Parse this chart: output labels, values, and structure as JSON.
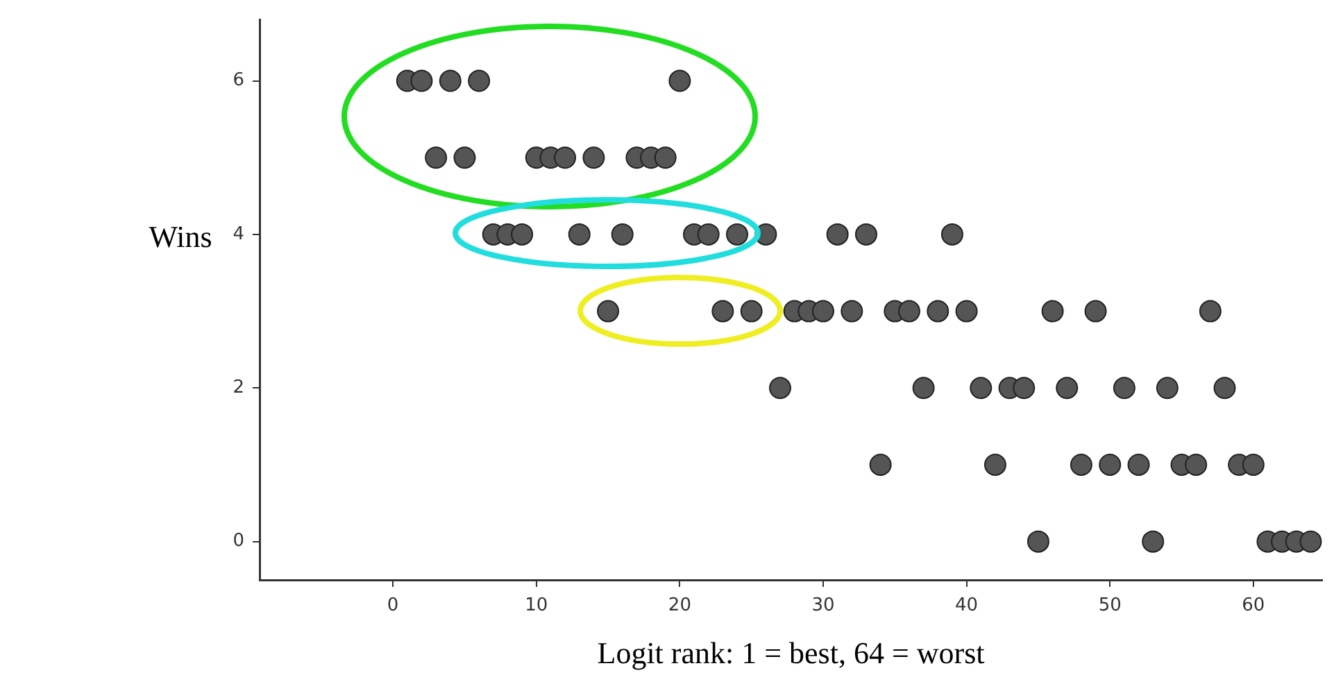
{
  "chart_data": {
    "type": "scatter",
    "xlabel": "Logit rank: 1 = best, 64 = worst",
    "ylabel": "Wins",
    "xlim": [
      -9.3,
      64.8
    ],
    "ylim": [
      -0.5,
      6.8
    ],
    "xticks": [
      0,
      10,
      20,
      30,
      40,
      50,
      60
    ],
    "yticks": [
      0,
      2,
      4,
      6
    ],
    "grid": false,
    "legend": false,
    "marker": "circle",
    "series": [
      {
        "color": "#555555",
        "x": [
          1,
          2,
          3,
          4,
          5,
          6,
          7,
          8,
          9,
          10,
          11,
          12,
          13,
          14,
          15,
          16,
          17,
          18,
          19,
          20,
          21,
          22,
          23,
          24,
          25,
          26,
          27,
          28,
          29,
          30,
          31,
          32,
          33,
          34,
          35,
          36,
          37,
          38,
          39,
          40,
          41,
          42,
          43,
          44,
          45,
          46,
          47,
          48,
          49,
          50,
          51,
          52,
          53,
          54,
          55,
          56,
          57,
          58,
          59,
          60,
          61,
          62,
          63,
          64
        ],
        "values": [
          6,
          6,
          5,
          6,
          5,
          6,
          4,
          4,
          4,
          5,
          5,
          5,
          4,
          5,
          3,
          4,
          5,
          5,
          5,
          6,
          4,
          4,
          3,
          4,
          3,
          4,
          2,
          3,
          3,
          3,
          4,
          3,
          4,
          1,
          3,
          3,
          2,
          3,
          4,
          3,
          2,
          1,
          2,
          2,
          0,
          3,
          2,
          1,
          3,
          1,
          2,
          1,
          0,
          2,
          1,
          1,
          3,
          2,
          1,
          1,
          0,
          0,
          0,
          0
        ]
      }
    ]
  }
}
